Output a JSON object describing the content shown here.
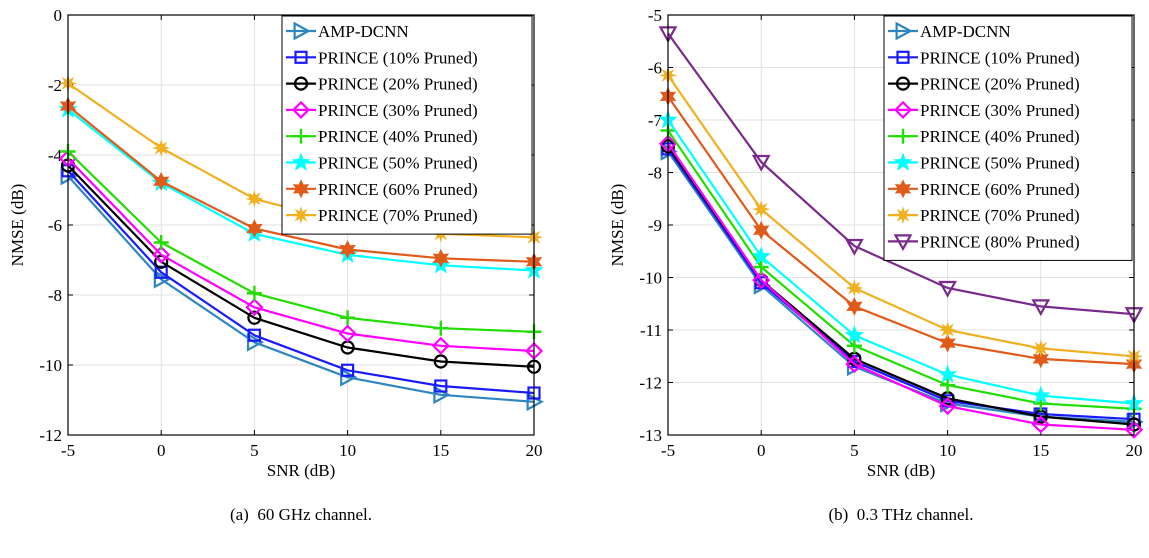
{
  "chart_data": [
    {
      "type": "line",
      "caption": "(a)  60 GHz channel.",
      "xlabel": "SNR (dB)",
      "ylabel": "NMSE (dB)",
      "xlim": [
        -5,
        20
      ],
      "ylim": [
        -12,
        0
      ],
      "xticks": [
        -5,
        0,
        5,
        10,
        15,
        20
      ],
      "yticks": [
        0,
        -2,
        -4,
        -6,
        -8,
        -10,
        -12
      ],
      "grid": true,
      "legend_position": "top-right",
      "x": [
        -5,
        0,
        5,
        10,
        15,
        20
      ],
      "series": [
        {
          "name": "AMP-DCNN",
          "color": "#2e86c1",
          "marker": "triangle-right",
          "values": [
            -4.6,
            -7.55,
            -9.35,
            -10.35,
            -10.85,
            -11.05
          ]
        },
        {
          "name": "PRINCE (10% Pruned)",
          "color": "#1a1aff",
          "marker": "square",
          "values": [
            -4.45,
            -7.35,
            -9.15,
            -10.15,
            -10.6,
            -10.8
          ]
        },
        {
          "name": "PRINCE (20% Pruned)",
          "color": "#000000",
          "marker": "circle",
          "values": [
            -4.3,
            -7.05,
            -8.65,
            -9.5,
            -9.9,
            -10.05
          ]
        },
        {
          "name": "PRINCE (30% Pruned)",
          "color": "#ff00ff",
          "marker": "diamond",
          "values": [
            -4.1,
            -6.85,
            -8.35,
            -9.1,
            -9.45,
            -9.6
          ]
        },
        {
          "name": "PRINCE (40% Pruned)",
          "color": "#22dd00",
          "marker": "plus",
          "values": [
            -3.9,
            -6.5,
            -7.95,
            -8.65,
            -8.95,
            -9.05
          ]
        },
        {
          "name": "PRINCE (50% Pruned)",
          "color": "#00ffff",
          "marker": "star",
          "values": [
            -2.7,
            -4.8,
            -6.25,
            -6.85,
            -7.15,
            -7.3
          ]
        },
        {
          "name": "PRINCE (60% Pruned)",
          "color": "#e05a1a",
          "marker": "hexagram",
          "values": [
            -2.6,
            -4.75,
            -6.1,
            -6.7,
            -6.95,
            -7.05
          ]
        },
        {
          "name": "PRINCE (70% Pruned)",
          "color": "#f0b020",
          "marker": "asterisk",
          "values": [
            -1.95,
            -3.8,
            -5.25,
            -5.95,
            -6.25,
            -6.35
          ]
        }
      ]
    },
    {
      "type": "line",
      "caption": "(b)  0.3 THz channel.",
      "xlabel": "SNR (dB)",
      "ylabel": "NMSE (dB)",
      "xlim": [
        -5,
        20
      ],
      "ylim": [
        -13,
        -5
      ],
      "xticks": [
        -5,
        0,
        5,
        10,
        15,
        20
      ],
      "yticks": [
        -5,
        -6,
        -7,
        -8,
        -9,
        -10,
        -11,
        -12,
        -13
      ],
      "grid": true,
      "legend_position": "top-right",
      "x": [
        -5,
        0,
        5,
        10,
        15,
        20
      ],
      "series": [
        {
          "name": "AMP-DCNN",
          "color": "#2e86c1",
          "marker": "triangle-right",
          "values": [
            -7.6,
            -10.15,
            -11.7,
            -12.4,
            -12.65,
            -12.75
          ]
        },
        {
          "name": "PRINCE (10% Pruned)",
          "color": "#1a1aff",
          "marker": "square",
          "values": [
            -7.55,
            -10.1,
            -11.6,
            -12.35,
            -12.6,
            -12.7
          ]
        },
        {
          "name": "PRINCE (20% Pruned)",
          "color": "#000000",
          "marker": "circle",
          "values": [
            -7.5,
            -10.05,
            -11.55,
            -12.3,
            -12.65,
            -12.8
          ]
        },
        {
          "name": "PRINCE (30% Pruned)",
          "color": "#ff00ff",
          "marker": "diamond",
          "values": [
            -7.45,
            -10.05,
            -11.65,
            -12.45,
            -12.8,
            -12.9
          ]
        },
        {
          "name": "PRINCE (40% Pruned)",
          "color": "#22dd00",
          "marker": "plus",
          "values": [
            -7.2,
            -9.8,
            -11.3,
            -12.05,
            -12.4,
            -12.5
          ]
        },
        {
          "name": "PRINCE (50% Pruned)",
          "color": "#00ffff",
          "marker": "star",
          "values": [
            -7.0,
            -9.6,
            -11.1,
            -11.85,
            -12.25,
            -12.4
          ]
        },
        {
          "name": "PRINCE (60% Pruned)",
          "color": "#e05a1a",
          "marker": "hexagram",
          "values": [
            -6.55,
            -9.1,
            -10.55,
            -11.25,
            -11.55,
            -11.65
          ]
        },
        {
          "name": "PRINCE (70% Pruned)",
          "color": "#f0b020",
          "marker": "asterisk",
          "values": [
            -6.15,
            -8.7,
            -10.2,
            -11.0,
            -11.35,
            -11.5
          ]
        },
        {
          "name": "PRINCE (80% Pruned)",
          "color": "#7a2a8a",
          "marker": "triangle-down",
          "values": [
            -5.35,
            -7.8,
            -9.4,
            -10.2,
            -10.55,
            -10.7
          ]
        }
      ]
    }
  ]
}
